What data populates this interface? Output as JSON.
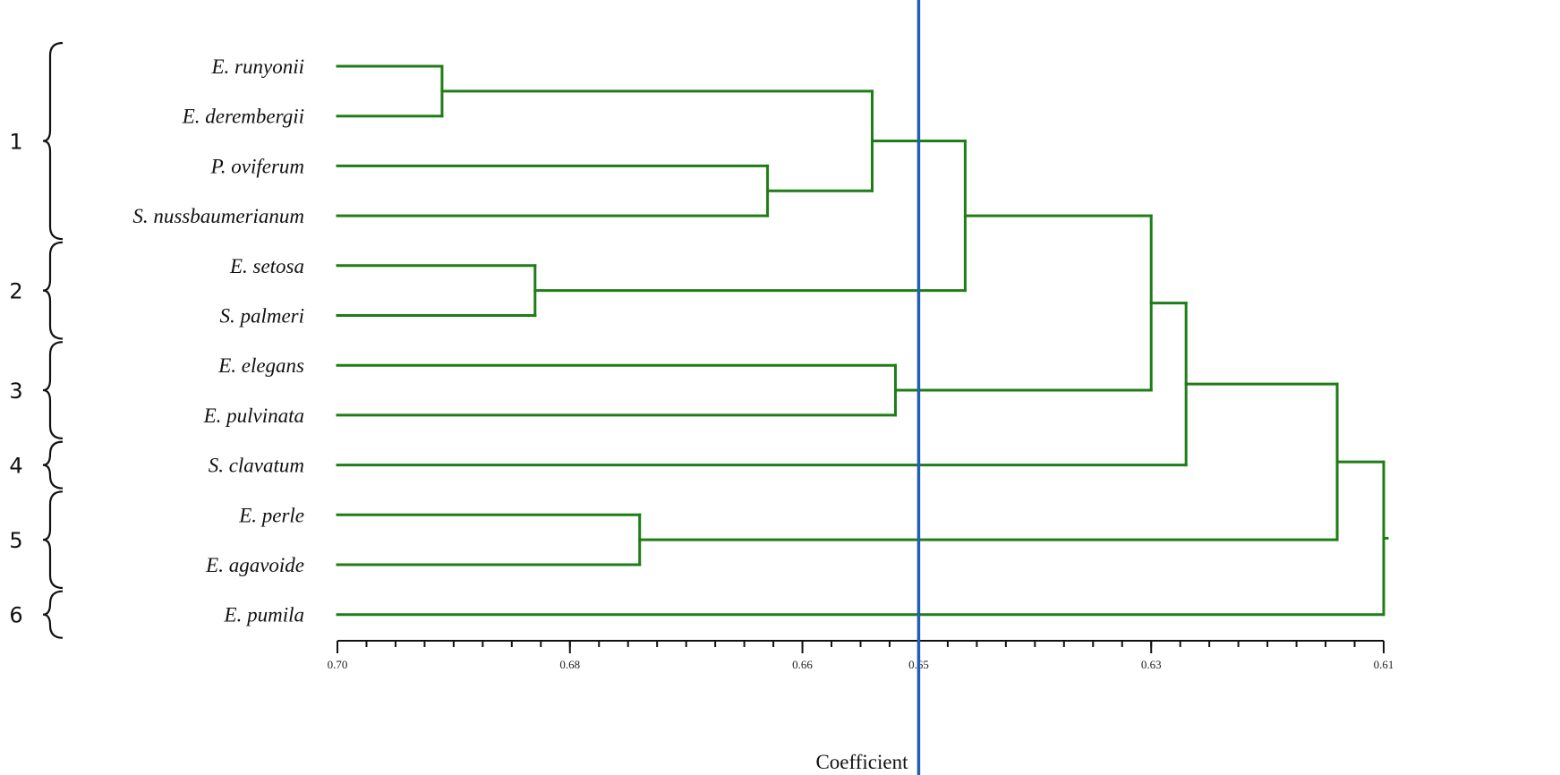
{
  "dendrogram": {
    "leaves": [
      {
        "id": "runyonii",
        "label": "E. runyonii"
      },
      {
        "id": "derembergii",
        "label": "E. derembergii"
      },
      {
        "id": "oviferum",
        "label": "P. oviferum"
      },
      {
        "id": "nussbaumerianum",
        "label": "S. nussbaumerianum"
      },
      {
        "id": "setosa",
        "label": "E. setosa"
      },
      {
        "id": "palmeri",
        "label": "S. palmeri"
      },
      {
        "id": "elegans",
        "label": "E. elegans"
      },
      {
        "id": "pulvinata",
        "label": "E. pulvinata"
      },
      {
        "id": "clavatum",
        "label": "S. clavatum"
      },
      {
        "id": "perle",
        "label": "E. perle"
      },
      {
        "id": "agavoide",
        "label": "E. agavoide"
      },
      {
        "id": "pumila",
        "label": "E. pumila"
      }
    ],
    "merges": [
      {
        "id": "m1",
        "children": [
          "runyonii",
          "derembergii"
        ],
        "coefficient": 0.691
      },
      {
        "id": "m2",
        "children": [
          "oviferum",
          "nussbaumerianum"
        ],
        "coefficient": 0.663
      },
      {
        "id": "m3",
        "children": [
          "m1",
          "m2"
        ],
        "coefficient": 0.654
      },
      {
        "id": "m4",
        "children": [
          "setosa",
          "palmeri"
        ],
        "coefficient": 0.683
      },
      {
        "id": "m5",
        "children": [
          "m3",
          "m4"
        ],
        "coefficient": 0.646
      },
      {
        "id": "m6",
        "children": [
          "elegans",
          "pulvinata"
        ],
        "coefficient": 0.652
      },
      {
        "id": "m7",
        "children": [
          "m5",
          "m6"
        ],
        "coefficient": 0.63
      },
      {
        "id": "m8",
        "children": [
          "m7",
          "clavatum"
        ],
        "coefficient": 0.627
      },
      {
        "id": "m9",
        "children": [
          "perle",
          "agavoide"
        ],
        "coefficient": 0.674
      },
      {
        "id": "m10",
        "children": [
          "m8",
          "m9"
        ],
        "coefficient": 0.614
      },
      {
        "id": "m11",
        "children": [
          "m10",
          "pumila"
        ],
        "coefficient": 0.61
      }
    ],
    "cutoff": 0.65,
    "branch_color": "#1e7d14",
    "cutoff_color": "#1f5fb4"
  },
  "axis": {
    "title": "Coefficient",
    "min": 0.61,
    "max": 0.7,
    "reversed": true,
    "major_ticks": [
      {
        "value": 0.7,
        "label": "0.70"
      },
      {
        "value": 0.68,
        "label": "0.68"
      },
      {
        "value": 0.66,
        "label": "0.66"
      },
      {
        "value": 0.65,
        "label": "0.65"
      },
      {
        "value": 0.63,
        "label": "0.63"
      },
      {
        "value": 0.61,
        "label": "0.61"
      }
    ],
    "minor_step": 0.0025
  },
  "groups": [
    {
      "label": "1",
      "from": "runyonii",
      "to": "nussbaumerianum"
    },
    {
      "label": "2",
      "from": "setosa",
      "to": "palmeri"
    },
    {
      "label": "3",
      "from": "elegans",
      "to": "pulvinata"
    },
    {
      "label": "4",
      "from": "clavatum",
      "to": "clavatum"
    },
    {
      "label": "5",
      "from": "perle",
      "to": "agavoide"
    },
    {
      "label": "6",
      "from": "pumila",
      "to": "pumila"
    }
  ]
}
